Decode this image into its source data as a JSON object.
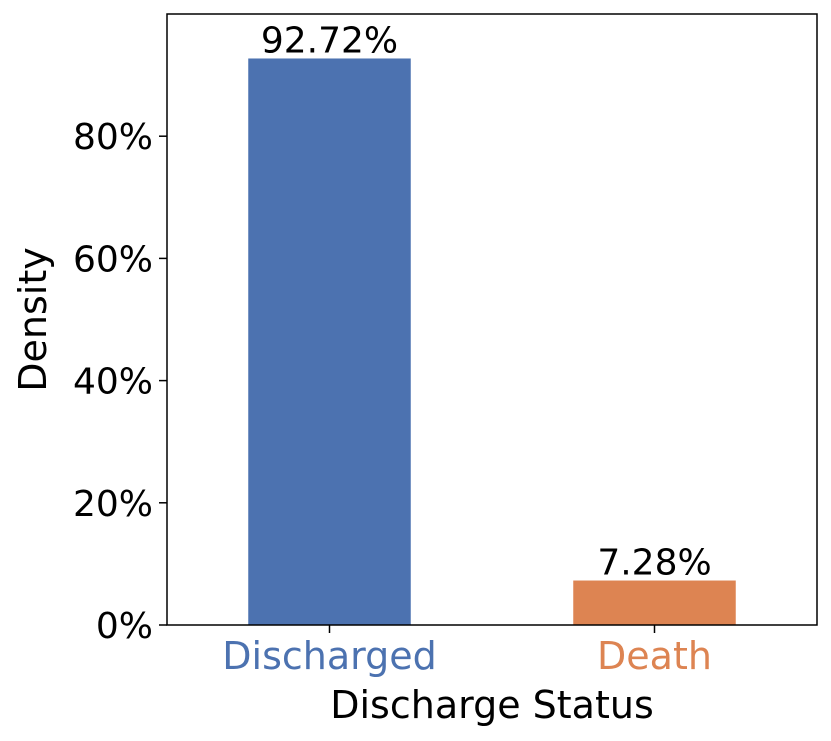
{
  "chart_data": {
    "type": "bar",
    "categories": [
      "Discharged",
      "Death"
    ],
    "values": [
      92.72,
      7.28
    ],
    "data_labels": [
      "92.72%",
      "7.28%"
    ],
    "colors": [
      "#4c72b0",
      "#dd8452"
    ],
    "category_label_colors": [
      "#4c72b0",
      "#dd8452"
    ],
    "xlabel": "Discharge Status",
    "ylabel": "Density",
    "ylim": [
      0,
      100
    ],
    "yticks": [
      0,
      20,
      40,
      60,
      80
    ],
    "ytick_labels": [
      "0%",
      "20%",
      "40%",
      "60%",
      "80%"
    ],
    "grid": false,
    "legend": "none"
  }
}
